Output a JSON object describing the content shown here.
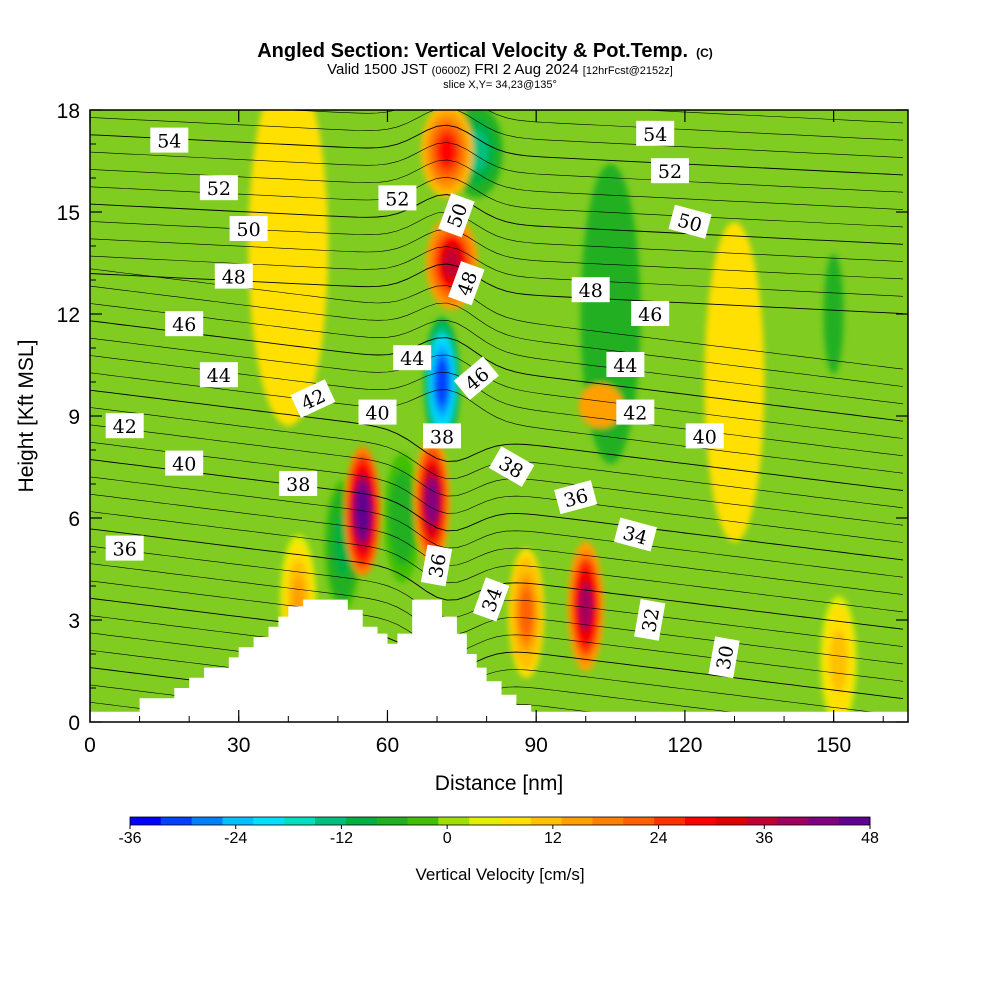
{
  "chart_data": {
    "type": "heatmap",
    "title": "Angled Section: Vertical Velocity & Pot.Temp.",
    "title_mark": "(C)",
    "subtitle_parts": {
      "valid": "Valid 1500 JST",
      "utc": "(0600Z)",
      "date": "FRI 2 Aug 2024",
      "forecast": "[12hrFcst@2152z]"
    },
    "slice_label": "slice X,Y= 34,23@135°",
    "xlabel": "Distance [nm]",
    "ylabel": "Height [Kft MSL]",
    "xlim": [
      0,
      165
    ],
    "ylim": [
      0,
      18
    ],
    "xticks": [
      "0",
      "30",
      "60",
      "90",
      "120",
      "150"
    ],
    "yticks": [
      "0",
      "3",
      "6",
      "9",
      "12",
      "15",
      "18"
    ],
    "colorbar": {
      "label": "Vertical Velocity [cm/s]",
      "range": [
        -36,
        48
      ],
      "tick_labels": [
        "-36",
        "-24",
        "-12",
        "0",
        "12",
        "24",
        "36",
        "48"
      ],
      "colors": [
        "#0000ff",
        "#0040ff",
        "#0080ff",
        "#00c0ff",
        "#00e0ff",
        "#00e0c0",
        "#00c080",
        "#00b040",
        "#20b020",
        "#40c000",
        "#a0e000",
        "#e0f000",
        "#ffe000",
        "#ffc000",
        "#ffa000",
        "#ff8000",
        "#ff6000",
        "#ff3000",
        "#ff0000",
        "#e00000",
        "#c00030",
        "#a00060",
        "#800080",
        "#600090"
      ]
    },
    "terrain_profile_kft": [
      [
        0,
        0.3
      ],
      [
        10,
        0.3
      ],
      [
        10,
        0.7
      ],
      [
        17,
        0.7
      ],
      [
        17,
        1.0
      ],
      [
        20,
        1.0
      ],
      [
        20,
        1.3
      ],
      [
        23,
        1.3
      ],
      [
        23,
        1.6
      ],
      [
        28,
        1.6
      ],
      [
        28,
        1.9
      ],
      [
        30,
        1.9
      ],
      [
        30,
        2.2
      ],
      [
        33,
        2.2
      ],
      [
        33,
        2.5
      ],
      [
        36,
        2.5
      ],
      [
        36,
        2.8
      ],
      [
        38,
        2.8
      ],
      [
        38,
        3.1
      ],
      [
        40,
        3.1
      ],
      [
        40,
        3.4
      ],
      [
        43,
        3.4
      ],
      [
        43,
        3.6
      ],
      [
        52,
        3.6
      ],
      [
        52,
        3.3
      ],
      [
        55,
        3.3
      ],
      [
        55,
        2.8
      ],
      [
        58,
        2.8
      ],
      [
        58,
        2.6
      ],
      [
        60,
        2.6
      ],
      [
        60,
        2.3
      ],
      [
        62,
        2.3
      ],
      [
        62,
        2.6
      ],
      [
        65,
        2.6
      ],
      [
        65,
        3.6
      ],
      [
        71,
        3.6
      ],
      [
        71,
        3.1
      ],
      [
        74,
        3.1
      ],
      [
        74,
        2.6
      ],
      [
        76,
        2.6
      ],
      [
        76,
        2.0
      ],
      [
        78,
        2.0
      ],
      [
        78,
        1.6
      ],
      [
        80,
        1.6
      ],
      [
        80,
        1.2
      ],
      [
        83,
        1.2
      ],
      [
        83,
        0.8
      ],
      [
        86,
        0.8
      ],
      [
        86,
        0.5
      ],
      [
        89,
        0.5
      ],
      [
        89,
        0.3
      ],
      [
        165,
        0.3
      ]
    ],
    "updraft_cores": [
      {
        "x": 55,
        "y": 6.2,
        "w_cm_s": 48
      },
      {
        "x": 69,
        "y": 6.5,
        "w_cm_s": 42
      },
      {
        "x": 100,
        "y": 3.4,
        "w_cm_s": 38
      },
      {
        "x": 73,
        "y": 13.5,
        "w_cm_s": 36
      },
      {
        "x": 72,
        "y": 16.8,
        "w_cm_s": 30
      },
      {
        "x": 88,
        "y": 3.2,
        "w_cm_s": 20
      },
      {
        "x": 42,
        "y": 3.6,
        "w_cm_s": 14
      },
      {
        "x": 151,
        "y": 1.8,
        "w_cm_s": 12
      }
    ],
    "downdraft_cores": [
      {
        "x": 71,
        "y": 10.0,
        "w_cm_s": -30
      },
      {
        "x": 78,
        "y": 16.8,
        "w_cm_s": -14
      },
      {
        "x": 51,
        "y": 5.2,
        "w_cm_s": -10
      },
      {
        "x": 63,
        "y": 6.0,
        "w_cm_s": -8
      }
    ],
    "contour_levels": [
      "30",
      "32",
      "34",
      "36",
      "38",
      "40",
      "42",
      "44",
      "46",
      "48",
      "50",
      "52",
      "54"
    ],
    "contour_labels": [
      {
        "text": "54",
        "x": 16,
        "y": 17.1,
        "rot": 0
      },
      {
        "text": "52",
        "x": 26,
        "y": 15.7,
        "rot": 0
      },
      {
        "text": "50",
        "x": 32,
        "y": 14.5,
        "rot": 0
      },
      {
        "text": "48",
        "x": 29,
        "y": 13.1,
        "rot": 0
      },
      {
        "text": "46",
        "x": 19,
        "y": 11.7,
        "rot": 0
      },
      {
        "text": "44",
        "x": 26,
        "y": 10.2,
        "rot": 0
      },
      {
        "text": "42",
        "x": 7,
        "y": 8.7,
        "rot": 0
      },
      {
        "text": "40",
        "x": 19,
        "y": 7.6,
        "rot": 0
      },
      {
        "text": "38",
        "x": 42,
        "y": 7.0,
        "rot": 0
      },
      {
        "text": "36",
        "x": 7,
        "y": 5.1,
        "rot": 0
      },
      {
        "text": "42",
        "x": 45,
        "y": 9.5,
        "rot": -25
      },
      {
        "text": "40",
        "x": 58,
        "y": 9.1,
        "rot": 0
      },
      {
        "text": "44",
        "x": 65,
        "y": 10.7,
        "rot": 0
      },
      {
        "text": "52",
        "x": 62,
        "y": 15.4,
        "rot": 0
      },
      {
        "text": "50",
        "x": 74,
        "y": 14.9,
        "rot": -70
      },
      {
        "text": "48",
        "x": 76,
        "y": 12.9,
        "rot": -70
      },
      {
        "text": "46",
        "x": 78,
        "y": 10.1,
        "rot": -40
      },
      {
        "text": "38",
        "x": 71,
        "y": 8.4,
        "rot": 0
      },
      {
        "text": "38",
        "x": 85,
        "y": 7.5,
        "rot": 30
      },
      {
        "text": "36",
        "x": 98,
        "y": 6.6,
        "rot": -15
      },
      {
        "text": "34",
        "x": 110,
        "y": 5.5,
        "rot": 15
      },
      {
        "text": "36",
        "x": 70,
        "y": 4.6,
        "rot": -80
      },
      {
        "text": "34",
        "x": 81,
        "y": 3.6,
        "rot": -70
      },
      {
        "text": "48",
        "x": 101,
        "y": 12.7,
        "rot": 0
      },
      {
        "text": "46",
        "x": 113,
        "y": 12.0,
        "rot": 0
      },
      {
        "text": "44",
        "x": 108,
        "y": 10.5,
        "rot": 0
      },
      {
        "text": "42",
        "x": 110,
        "y": 9.1,
        "rot": 0
      },
      {
        "text": "40",
        "x": 124,
        "y": 8.4,
        "rot": 0
      },
      {
        "text": "54",
        "x": 114,
        "y": 17.3,
        "rot": 0
      },
      {
        "text": "52",
        "x": 117,
        "y": 16.2,
        "rot": 0
      },
      {
        "text": "50",
        "x": 121,
        "y": 14.7,
        "rot": 15
      },
      {
        "text": "32",
        "x": 113,
        "y": 3.0,
        "rot": -80
      },
      {
        "text": "30",
        "x": 128,
        "y": 1.9,
        "rot": -80
      }
    ]
  }
}
